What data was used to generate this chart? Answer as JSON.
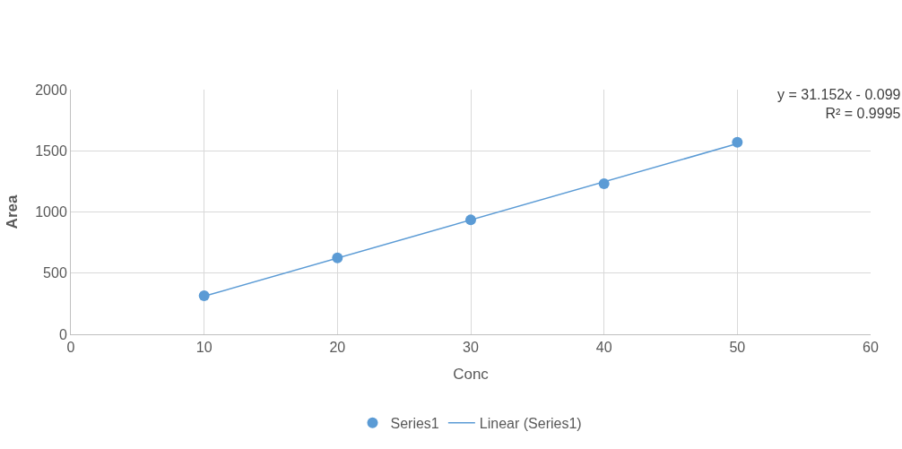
{
  "chart_data": {
    "type": "scatter",
    "xlabel": "Conc",
    "ylabel": "Area",
    "x": [
      10,
      20,
      30,
      40,
      50
    ],
    "series": [
      {
        "name": "Series1",
        "color": "#5b9bd5",
        "marker": "circle",
        "values": [
          315,
          625,
          935,
          1230,
          1570
        ]
      },
      {
        "name": "Linear (Series1)",
        "type": "line",
        "color": "#5b9bd5",
        "line_style": "solid",
        "marker": "none",
        "x": [
          10,
          50
        ],
        "values": [
          311,
          1558
        ]
      }
    ],
    "xlim": [
      0,
      60
    ],
    "xticks": [
      0,
      10,
      20,
      30,
      40,
      50,
      60
    ],
    "ylim": [
      0,
      2000
    ],
    "yticks": [
      0,
      500,
      1000,
      1500,
      2000
    ],
    "grid": true,
    "legend": "bottom",
    "annotations": [
      "y = 31.152x - 0.099\nR² = 0.9995"
    ]
  }
}
